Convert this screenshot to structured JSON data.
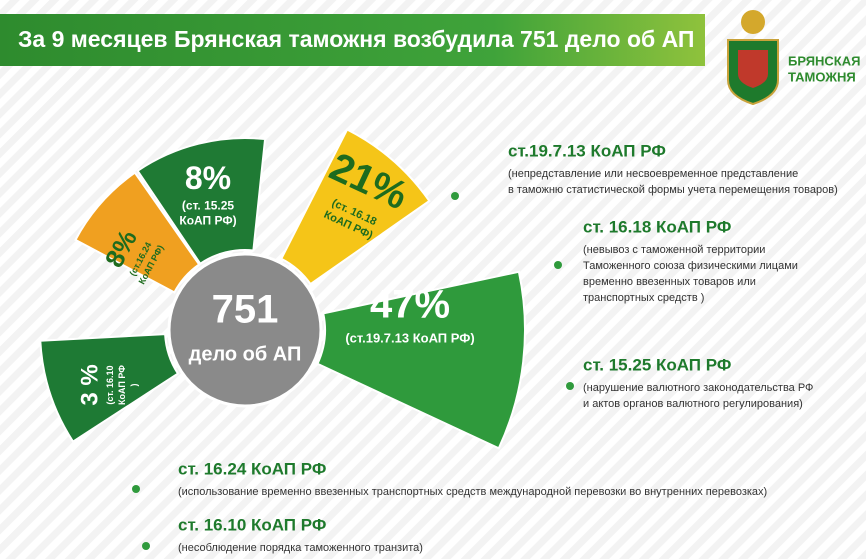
{
  "header": {
    "title": "За 9 месяцев Брянская таможня возбудила 751 дело об АП",
    "logo_text": [
      "БРЯНСКАЯ",
      "ТАМОЖНЯ"
    ]
  },
  "center": {
    "value": "751",
    "label": "дело об АП"
  },
  "segments": [
    {
      "percent": "47%",
      "label": [
        "(ст.19.7.13 КоАП РФ)"
      ]
    },
    {
      "percent": "21%",
      "label": [
        "(ст. 16.18",
        "КоАП РФ)"
      ]
    },
    {
      "percent": "8%",
      "label": [
        "(ст. 15.25",
        "КоАП РФ)"
      ]
    },
    {
      "percent": "8%",
      "label": [
        "(ст.16.24",
        "КоАП РФ)"
      ]
    },
    {
      "percent": "3 %",
      "label": [
        "(ст. 16.10",
        "КоАП РФ",
        ")"
      ]
    }
  ],
  "legend": [
    {
      "title": "ст.19.7.13 КоАП РФ",
      "description": [
        "(непредставление или несвоевременное  представление",
        "в таможню статистической формы учета перемещения товаров)"
      ]
    },
    {
      "title": "ст. 16.18 КоАП РФ",
      "description": [
        "(невывоз с таможенной территории",
        "Таможенного союза физическими лицами",
        " временно ввезенных товаров или",
        " транспортных средств )"
      ]
    },
    {
      "title": "ст. 15.25 КоАП РФ",
      "description": [
        "(нарушение  валютного законодательства РФ",
        "и актов органов валютного регулирования)"
      ]
    },
    {
      "title": "ст. 16.24 КоАП РФ",
      "description": [
        "(использование временно  ввезенных транспортных средств международной перевозки во внутренних перевозках)"
      ]
    },
    {
      "title": "ст. 16.10 КоАП РФ",
      "description": [
        "(несоблюдение порядка таможенного транзита)"
      ]
    }
  ]
}
